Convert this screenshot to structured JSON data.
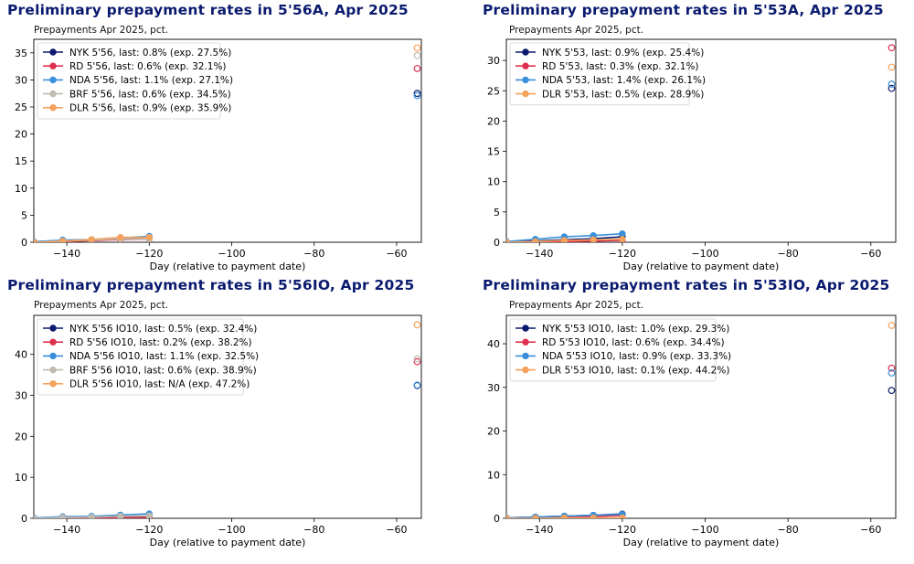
{
  "chart_data": [
    {
      "type": "line",
      "title": "Preliminary prepayment rates in 5'56A, Apr 2025",
      "subtitle": "Prepayments Apr 2025, pct.",
      "xlabel": "Day (relative to payment date)",
      "ylabel": "",
      "xlim": [
        -148,
        -54
      ],
      "ylim": [
        0,
        37.5
      ],
      "xticks": [
        -140,
        -120,
        -100,
        -80,
        -60
      ],
      "xtick_labels": [
        "−140",
        "−120",
        "−100",
        "−80",
        "−60"
      ],
      "yticks": [
        0,
        5,
        10,
        15,
        20,
        25,
        30,
        35
      ],
      "legend_position": "upper-left",
      "series": [
        {
          "name": "NYK 5'56, last: 0.8% (exp. 27.5%)",
          "color": "#0b1a6e",
          "x": [
            -148,
            -141,
            -134,
            -127,
            -120
          ],
          "y": [
            0.1,
            0.3,
            0.4,
            0.6,
            0.8
          ],
          "exp_x": -55,
          "exp": 27.5
        },
        {
          "name": "RD 5'56, last: 0.6% (exp. 32.1%)",
          "color": "#e0304f",
          "x": [
            -148,
            -141,
            -134,
            -127,
            -120
          ],
          "y": [
            0.0,
            0.1,
            0.3,
            0.5,
            0.6
          ],
          "exp_x": -55,
          "exp": 32.1
        },
        {
          "name": "NDA 5'56, last: 1.1% (exp. 27.1%)",
          "color": "#3a8fd9",
          "x": [
            -148,
            -141,
            -134,
            -127,
            -120
          ],
          "y": [
            0.1,
            0.4,
            0.5,
            0.8,
            1.1
          ],
          "exp_x": -55,
          "exp": 27.1
        },
        {
          "name": "BRF 5'56, last: 0.6% (exp. 34.5%)",
          "color": "#bfbbb0",
          "x": [
            -148,
            -141,
            -134,
            -127,
            -120
          ],
          "y": [
            0.0,
            0.2,
            0.4,
            0.6,
            0.6
          ],
          "exp_x": -55,
          "exp": 34.5
        },
        {
          "name": "DLR 5'56, last: 0.9% (exp. 35.9%)",
          "color": "#f5a25d",
          "x": [
            -148,
            -141,
            -134,
            -127,
            -120
          ],
          "y": [
            0.0,
            0.2,
            0.5,
            0.9,
            0.9
          ],
          "exp_x": -55,
          "exp": 35.9
        }
      ]
    },
    {
      "type": "line",
      "title": "Preliminary prepayment rates in 5'53A, Apr 2025",
      "subtitle": "Prepayments Apr 2025, pct.",
      "xlabel": "Day (relative to payment date)",
      "ylabel": "",
      "xlim": [
        -148,
        -54
      ],
      "ylim": [
        0,
        33.5
      ],
      "xticks": [
        -140,
        -120,
        -100,
        -80,
        -60
      ],
      "xtick_labels": [
        "−140",
        "−120",
        "−100",
        "−80",
        "−60"
      ],
      "yticks": [
        0,
        5,
        10,
        15,
        20,
        25,
        30
      ],
      "legend_position": "upper-left",
      "series": [
        {
          "name": "NYK 5'53, last: 0.9% (exp. 25.4%)",
          "color": "#0b1a6e",
          "x": [
            -148,
            -141,
            -134,
            -127,
            -120
          ],
          "y": [
            0.1,
            0.2,
            0.4,
            0.6,
            0.9
          ],
          "exp_x": -55,
          "exp": 25.4
        },
        {
          "name": "RD 5'53, last: 0.3% (exp. 32.1%)",
          "color": "#e0304f",
          "x": [
            -148,
            -141,
            -134,
            -127,
            -120
          ],
          "y": [
            0.0,
            0.1,
            0.1,
            0.2,
            0.3
          ],
          "exp_x": -55,
          "exp": 32.1
        },
        {
          "name": "NDA 5'53, last: 1.4% (exp. 26.1%)",
          "color": "#3a8fd9",
          "x": [
            -148,
            -141,
            -134,
            -127,
            -120
          ],
          "y": [
            0.1,
            0.5,
            0.9,
            1.1,
            1.4
          ],
          "exp_x": -55,
          "exp": 26.1
        },
        {
          "name": "DLR 5'53, last: 0.5% (exp. 28.9%)",
          "color": "#f5a25d",
          "x": [
            -148,
            -141,
            -134,
            -127,
            -120
          ],
          "y": [
            0.0,
            0.1,
            0.3,
            0.4,
            0.5
          ],
          "exp_x": -55,
          "exp": 28.9
        }
      ]
    },
    {
      "type": "line",
      "title": "Preliminary prepayment rates in 5'56IO, Apr 2025",
      "subtitle": "Prepayments Apr 2025, pct.",
      "xlabel": "Day (relative to payment date)",
      "ylabel": "",
      "xlim": [
        -148,
        -54
      ],
      "ylim": [
        0,
        49.5
      ],
      "xticks": [
        -140,
        -120,
        -100,
        -80,
        -60
      ],
      "xtick_labels": [
        "−140",
        "−120",
        "−100",
        "−80",
        "−60"
      ],
      "yticks": [
        0,
        10,
        20,
        30,
        40
      ],
      "legend_position": "upper-left",
      "series": [
        {
          "name": "NYK 5'56 IO10, last: 0.5% (exp. 32.4%)",
          "color": "#0b1a6e",
          "x": [
            -148,
            -141,
            -134,
            -127,
            -120
          ],
          "y": [
            0.1,
            0.2,
            0.3,
            0.4,
            0.5
          ],
          "exp_x": -55,
          "exp": 32.4
        },
        {
          "name": "RD 5'56 IO10, last: 0.2% (exp. 38.2%)",
          "color": "#e0304f",
          "x": [
            -148,
            -141,
            -134,
            -127,
            -120
          ],
          "y": [
            0.0,
            0.1,
            0.1,
            0.2,
            0.2
          ],
          "exp_x": -55,
          "exp": 38.2
        },
        {
          "name": "NDA 5'56 IO10, last: 1.1% (exp. 32.5%)",
          "color": "#3a8fd9",
          "x": [
            -148,
            -141,
            -134,
            -127,
            -120
          ],
          "y": [
            0.1,
            0.4,
            0.5,
            0.8,
            1.1
          ],
          "exp_x": -55,
          "exp": 32.5
        },
        {
          "name": "BRF 5'56 IO10, last: 0.6% (exp. 38.9%)",
          "color": "#bfbbb0",
          "x": [
            -148,
            -141,
            -134,
            -127,
            -120
          ],
          "y": [
            0.0,
            0.2,
            0.3,
            0.5,
            0.6
          ],
          "exp_x": -55,
          "exp": 38.9
        },
        {
          "name": "DLR 5'56 IO10, last: N/A (exp. 47.2%)",
          "color": "#f5a25d",
          "x": [],
          "y": [],
          "exp_x": -55,
          "exp": 47.2
        }
      ]
    },
    {
      "type": "line",
      "title": "Preliminary prepayment rates in 5'53IO, Apr 2025",
      "subtitle": "Prepayments Apr 2025, pct.",
      "xlabel": "Day (relative to payment date)",
      "ylabel": "",
      "xlim": [
        -148,
        -54
      ],
      "ylim": [
        0,
        46.5
      ],
      "xticks": [
        -140,
        -120,
        -100,
        -80,
        -60
      ],
      "xtick_labels": [
        "−140",
        "−120",
        "−100",
        "−80",
        "−60"
      ],
      "yticks": [
        0,
        10,
        20,
        30,
        40
      ],
      "legend_position": "upper-left",
      "series": [
        {
          "name": "NYK 5'53 IO10, last: 1.0% (exp. 29.3%)",
          "color": "#0b1a6e",
          "x": [
            -148,
            -141,
            -134,
            -127,
            -120
          ],
          "y": [
            0.1,
            0.3,
            0.5,
            0.7,
            1.0
          ],
          "exp_x": -55,
          "exp": 29.3
        },
        {
          "name": "RD 5'53 IO10, last: 0.6% (exp. 34.4%)",
          "color": "#e0304f",
          "x": [
            -148,
            -141,
            -134,
            -127,
            -120
          ],
          "y": [
            0.0,
            0.1,
            0.3,
            0.4,
            0.6
          ],
          "exp_x": -55,
          "exp": 34.4
        },
        {
          "name": "NDA 5'53 IO10, last: 0.9% (exp. 33.3%)",
          "color": "#3a8fd9",
          "x": [
            -148,
            -141,
            -134,
            -127,
            -120
          ],
          "y": [
            0.1,
            0.3,
            0.5,
            0.7,
            0.9
          ],
          "exp_x": -55,
          "exp": 33.3
        },
        {
          "name": "DLR 5'53 IO10, last: 0.1% (exp. 44.2%)",
          "color": "#f5a25d",
          "x": [
            -148,
            -141,
            -134,
            -127,
            -120
          ],
          "y": [
            0.0,
            0.0,
            0.1,
            0.1,
            0.1
          ],
          "exp_x": -55,
          "exp": 44.2
        }
      ]
    }
  ]
}
